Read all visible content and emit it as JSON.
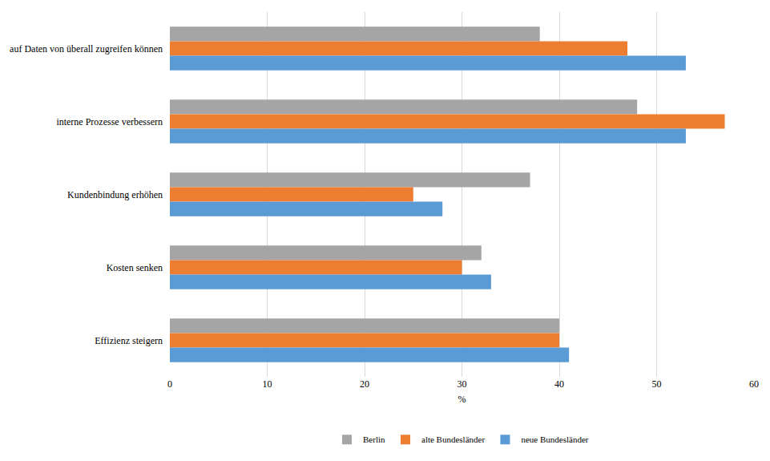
{
  "chart_data": {
    "type": "bar",
    "orientation": "horizontal",
    "x_label": "%",
    "categories": [
      "auf Daten von überall zugreifen können",
      "interne Prozesse verbessern",
      "Kundenbindung erhöhen",
      "Kosten senken",
      "Effizienz steigern"
    ],
    "series": [
      {
        "name": "Berlin",
        "color": "#a5a5a5",
        "values": [
          38,
          48,
          37,
          32,
          40
        ]
      },
      {
        "name": "alte Bundesländer",
        "color": "#ed7d31",
        "values": [
          47,
          57,
          25,
          30,
          40
        ]
      },
      {
        "name": "neue Bundesländer",
        "color": "#5b9bd5",
        "values": [
          53,
          53,
          28,
          33,
          41
        ]
      }
    ],
    "xlim": [
      0,
      60
    ],
    "xticks": [
      0,
      10,
      20,
      30,
      40,
      50,
      60
    ],
    "grid": true,
    "legend": "bottom"
  }
}
